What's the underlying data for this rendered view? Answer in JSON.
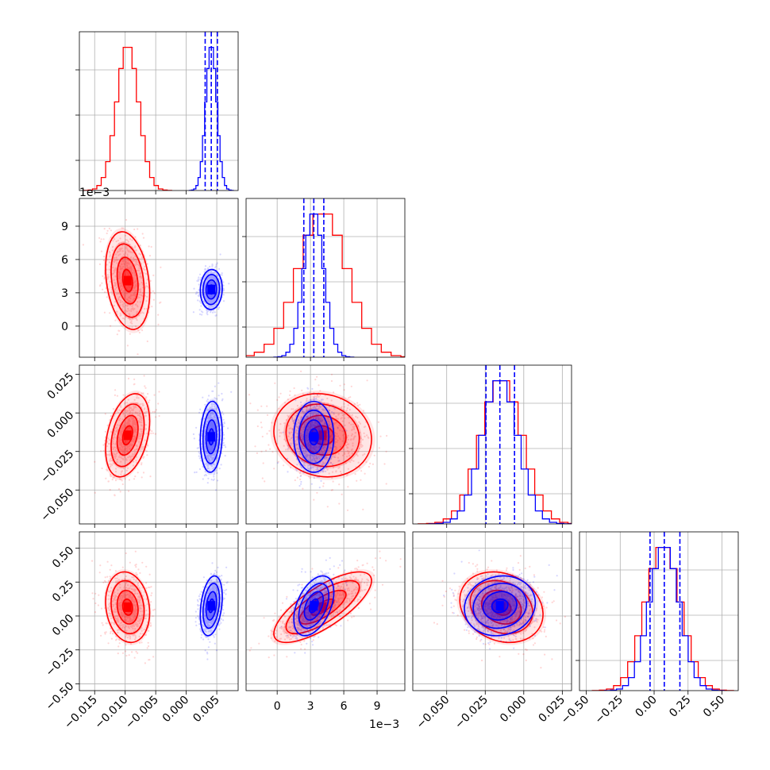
{
  "colors": {
    "series_a": "#ff0000",
    "series_b": "#0000ff",
    "grid": "#b0b0b0"
  },
  "chart_data": {
    "type": "corner",
    "grid": true,
    "parameters": [
      {
        "index": 0,
        "range": [
          -0.0175,
          0.0085
        ],
        "ticks": [
          -0.015,
          -0.01,
          -0.005,
          0.0,
          0.005
        ],
        "tick_labels": [
          "−0.015",
          "−0.010",
          "−0.005",
          "0.000",
          "0.005"
        ]
      },
      {
        "index": 1,
        "range": [
          -0.0028,
          0.0115
        ],
        "ticks": [
          0,
          0.003,
          0.006,
          0.009
        ],
        "tick_labels": [
          "0",
          "3",
          "6",
          "9"
        ],
        "offset_text": "1e−3"
      },
      {
        "index": 2,
        "range": [
          -0.072,
          0.031
        ],
        "ticks": [
          -0.05,
          -0.025,
          0.0,
          0.025
        ],
        "tick_labels": [
          "−0.050",
          "−0.025",
          "0.000",
          "0.025"
        ]
      },
      {
        "index": 3,
        "range": [
          -0.55,
          0.62
        ],
        "ticks": [
          -0.5,
          -0.25,
          0.0,
          0.25,
          0.5
        ],
        "tick_labels": [
          "−0.50",
          "−0.25",
          "0.00",
          "0.25",
          "0.50"
        ]
      }
    ],
    "series": [
      {
        "color": "#ff0000",
        "means": [
          -0.0096,
          0.0041,
          -0.0145,
          0.065
        ],
        "sigmas": [
          0.0018,
          0.0022,
          0.0135,
          0.13
        ],
        "correlations": {
          "0-1": -0.25,
          "0-2": 0.35,
          "0-3": -0.15,
          "1-2": -0.1,
          "1-3": 0.75,
          "2-3": -0.2
        }
      },
      {
        "color": "#0000ff",
        "means": [
          0.0041,
          0.0033,
          -0.0155,
          0.075
        ],
        "sigmas": [
          0.0009,
          0.0009,
          0.0115,
          0.11
        ],
        "correlations": {
          "0-1": 0.05,
          "0-2": 0.1,
          "0-3": 0.3,
          "1-2": 0.0,
          "1-3": 0.45,
          "2-3": 0.1
        },
        "quantile_lines": [
          [
            0.0031,
            0.0041,
            0.0051
          ],
          [
            0.0024,
            0.0033,
            0.0042
          ],
          [
            -0.0245,
            -0.0155,
            -0.006
          ],
          [
            -0.03,
            0.075,
            0.19
          ]
        ]
      }
    ]
  }
}
